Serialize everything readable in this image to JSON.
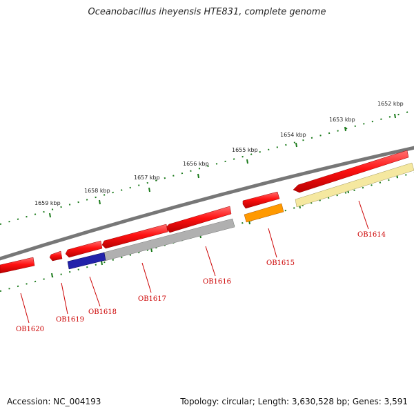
{
  "title": "Oceanobacillus iheyensis HTE831, complete genome",
  "footer": {
    "accession": "Accession: NC_004193",
    "topology": "Topology: circular; Length: 3,630,528 bp; Genes: 3,591"
  },
  "kbp_labels": [
    "1652 kbp",
    "1653 kbp",
    "1654 kbp",
    "1655 kbp",
    "1656 kbp",
    "1657 kbp",
    "1658 kbp",
    "1659 kbp"
  ],
  "genes": [
    {
      "id": "OB1614",
      "label": "OB1614",
      "color": "#ff1a1a",
      "cds_color": "#f5e8a0"
    },
    {
      "id": "OB1615",
      "label": "OB1615",
      "color": "#ff1a1a",
      "cds_color": "#ff9900"
    },
    {
      "id": "OB1616",
      "label": "OB1616",
      "color": "#ff1a1a",
      "cds_color": "#b0b0b0"
    },
    {
      "id": "OB1617",
      "label": "OB1617",
      "color": "#ff1a1a",
      "cds_color": "#c0c0c0"
    },
    {
      "id": "OB1618",
      "label": "OB1618",
      "color": "#ff1a1a",
      "cds_color": "#2222aa"
    },
    {
      "id": "OB1619",
      "label": "OB1619",
      "color": "#ff1a1a",
      "cds_color": ""
    },
    {
      "id": "OB1620",
      "label": "OB1620",
      "color": "#ff1a1a",
      "cds_color": ""
    }
  ],
  "colors": {
    "backbone": "#777777",
    "tick": "#1a7a1a",
    "gene_red": "#ff1a1a",
    "label_red": "#cc0000"
  }
}
